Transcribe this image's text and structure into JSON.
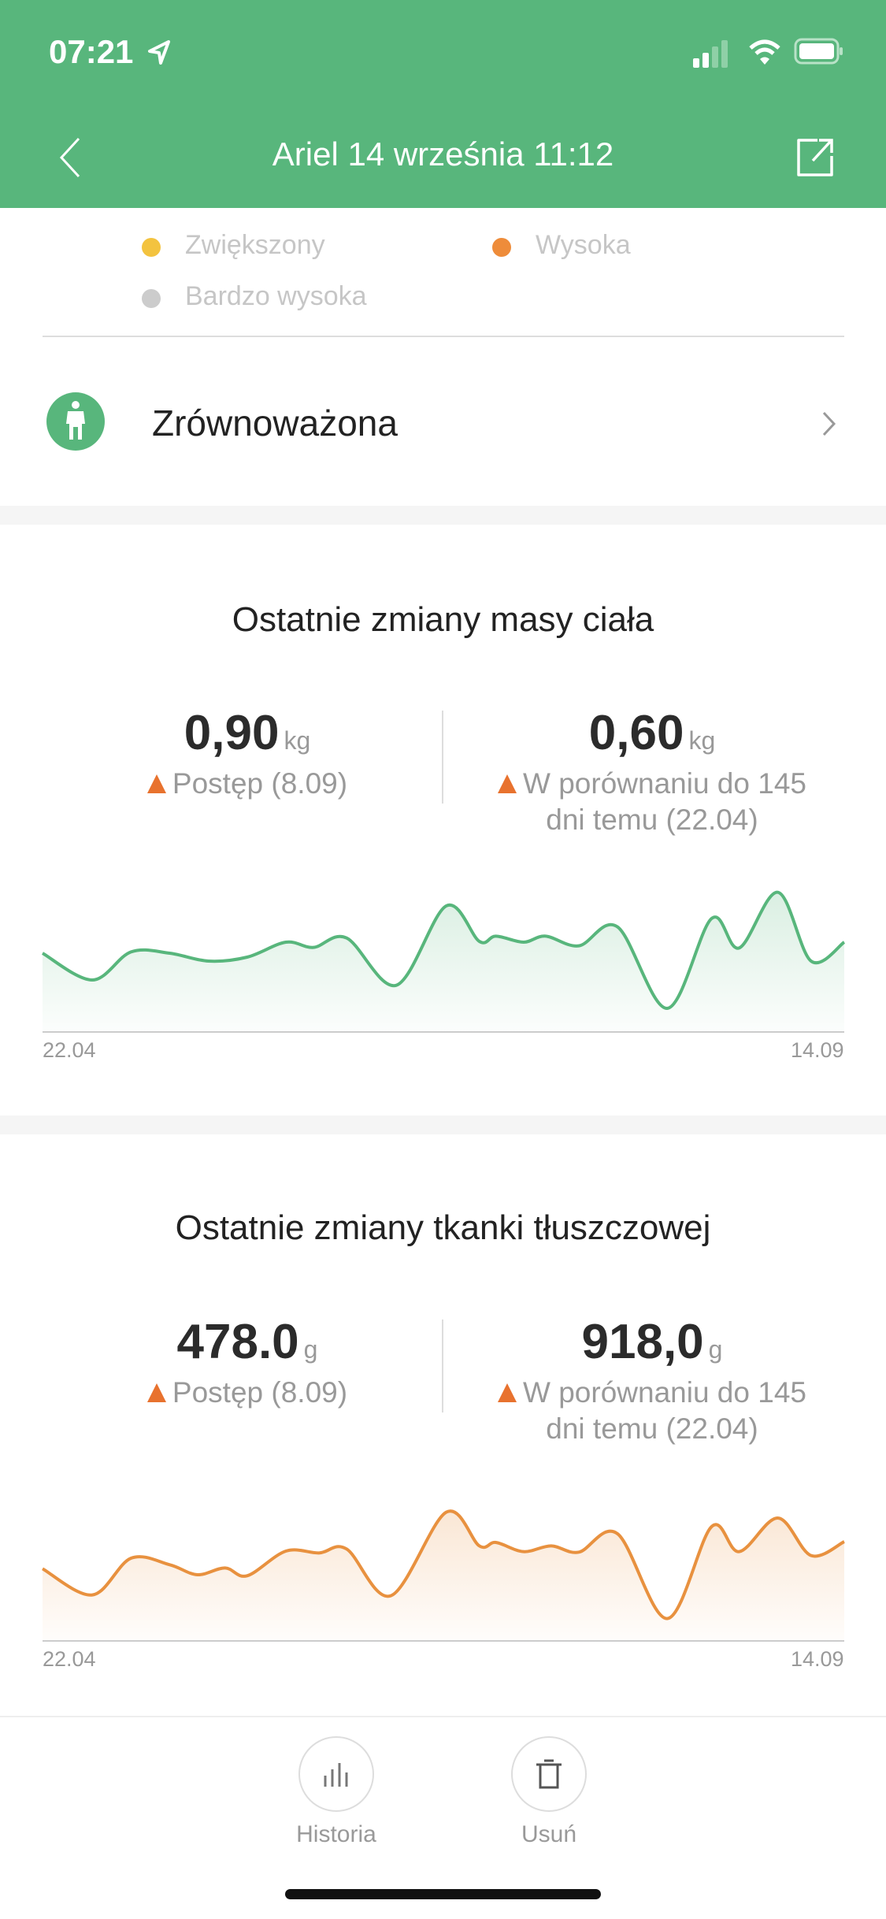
{
  "status_bar": {
    "time": "07:21",
    "icons": [
      "location-arrow-icon",
      "signal-icon",
      "wifi-icon",
      "battery-icon"
    ]
  },
  "header": {
    "title": "Ariel 14 września 11:12",
    "back_icon": "chevron-left-icon",
    "share_icon": "share-icon",
    "color": "#58b67c"
  },
  "legend": [
    {
      "label": "Zwiększony",
      "color": "#f3c33f"
    },
    {
      "label": "Wysoka",
      "color": "#ee8c3a"
    },
    {
      "label": "Bardzo wysoka",
      "color": "#cccccc"
    }
  ],
  "body_type": {
    "label": "Zrównoważona",
    "icon": "person-icon"
  },
  "weight_card": {
    "title": "Ostatnie zmiany masy ciała",
    "left": {
      "value": "0,90",
      "unit": "kg",
      "note": "Postęp (8.09)"
    },
    "right": {
      "value": "0,60",
      "unit": "kg",
      "note_line1": "W porównaniu do 145",
      "note_line2": "dni temu (22.04)"
    }
  },
  "fat_card": {
    "title": "Ostatnie zmiany tkanki tłuszczowej",
    "left": {
      "value": "478.0",
      "unit": "g",
      "note": "Postęp (8.09)"
    },
    "right": {
      "value": "918,0",
      "unit": "g",
      "note_line1": "W porównaniu do 145",
      "note_line2": "dni temu (22.04)"
    }
  },
  "chart_data": [
    {
      "type": "area",
      "color": "#58b67c",
      "x_tick_labels": [
        "22.04",
        "14.09"
      ],
      "grid": false,
      "x": [
        "22.04",
        "01.05",
        "08.05",
        "15.05",
        "22.05",
        "29.05",
        "05.06",
        "10.06",
        "16.06",
        "25.06",
        "04.07",
        "10.07",
        "13.07",
        "18.07",
        "22.07",
        "28.07",
        "04.08",
        "13.08",
        "21.08",
        "26.08",
        "02.09",
        "08.09",
        "14.09"
      ],
      "values": [
        30,
        19.8,
        30.5,
        30,
        27,
        28.5,
        34.2,
        32.2,
        35.8,
        17.8,
        48,
        34.5,
        36.5,
        34.2,
        36.5,
        32.8,
        40,
        9,
        43.2,
        32,
        53.2,
        27,
        34.2
      ]
    },
    {
      "type": "area",
      "color": "#e8913f",
      "x_tick_labels": [
        "22.04",
        "14.09"
      ],
      "grid": false,
      "x": [
        "22.04",
        "01.05",
        "08.05",
        "15.05",
        "20.05",
        "25.05",
        "29.05",
        "05.06",
        "11.06",
        "16.06",
        "24.06",
        "04.07",
        "10.07",
        "13.07",
        "18.07",
        "23.07",
        "28.07",
        "04.08",
        "13.08",
        "21.08",
        "26.08",
        "02.09",
        "08.09",
        "14.09"
      ],
      "values": [
        27.5,
        17.5,
        31.5,
        29,
        25.2,
        27.8,
        24.8,
        34.2,
        33.5,
        35,
        17.2,
        49,
        36.2,
        37.5,
        34,
        36.2,
        33.8,
        40.8,
        8.5,
        43.5,
        34,
        46.8,
        32.5,
        37.8
      ]
    }
  ],
  "bottom_bar": {
    "history_label": "Historia",
    "delete_label": "Usuń"
  }
}
